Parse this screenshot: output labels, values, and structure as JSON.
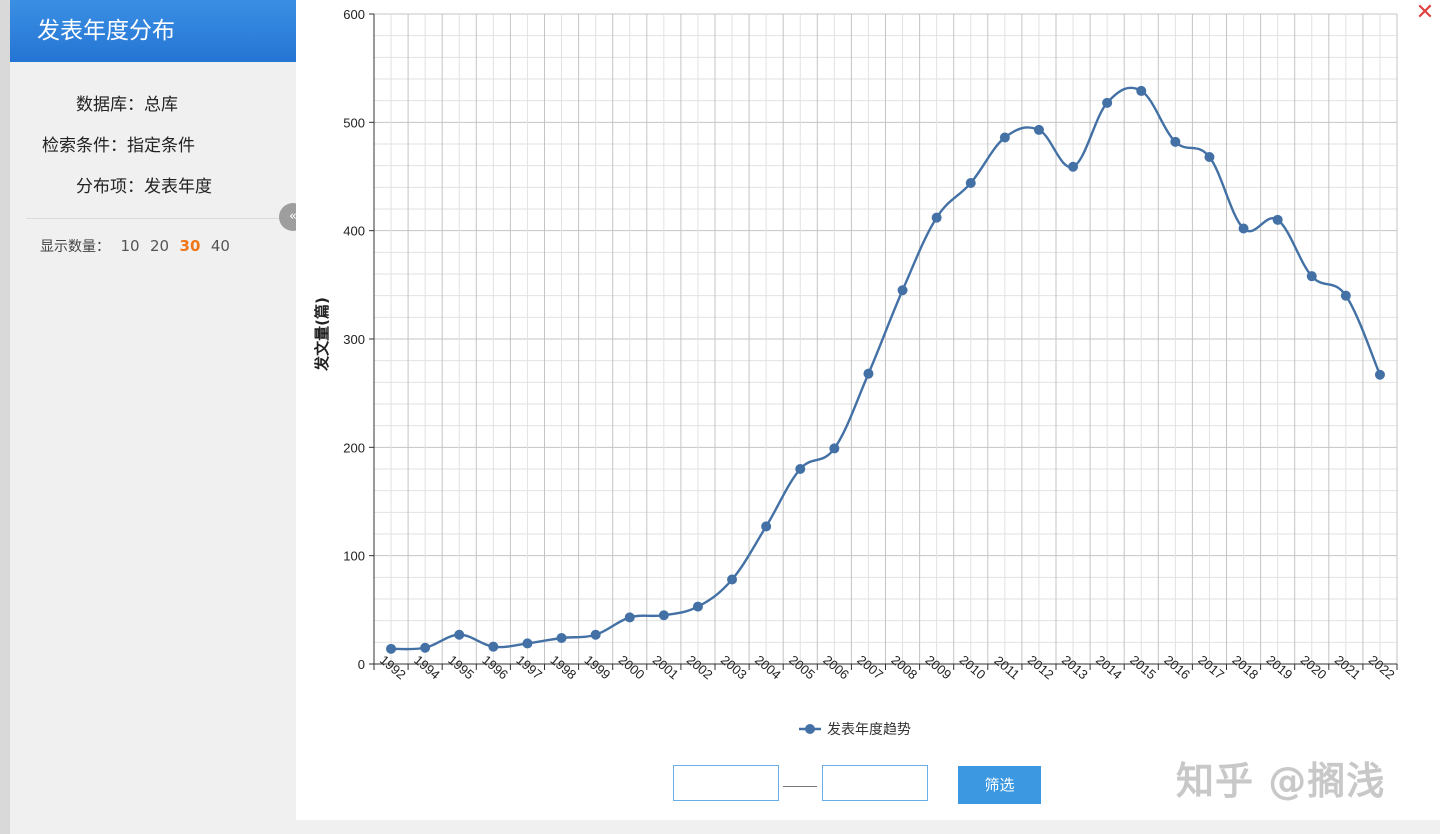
{
  "panel": {
    "title": "发表年度分布",
    "info": [
      {
        "key": "数据库：",
        "value": "总库"
      },
      {
        "key": "检索条件：",
        "value": "指定条件"
      },
      {
        "key": "分布项：",
        "value": "发表年度"
      }
    ],
    "display_count_label": "显示数量：",
    "display_count_options": [
      "10",
      "20",
      "30",
      "40"
    ],
    "display_count_selected": "30",
    "collapse_icon": "double-chevron-left-icon"
  },
  "close_icon": "close-icon",
  "filter": {
    "start_value": "",
    "end_value": "",
    "button_label": "筛选"
  },
  "watermark": "知乎 @搁浅",
  "colors": {
    "series": "#4471a5",
    "header": "#2f84dc",
    "active_option": "#f0761a",
    "filter_button": "#3c98e0"
  },
  "chart_data": {
    "type": "line",
    "ylabel": "发文量(篇)",
    "ylim": [
      0,
      600
    ],
    "yticks": [
      "0",
      "100",
      "200",
      "300",
      "400",
      "500",
      "600"
    ],
    "grid": true,
    "legend_position": "bottom",
    "categories": [
      "1992",
      "1994",
      "1995",
      "1996",
      "1997",
      "1998",
      "1999",
      "2000",
      "2001",
      "2002",
      "2003",
      "2004",
      "2005",
      "2006",
      "2007",
      "2008",
      "2009",
      "2010",
      "2011",
      "2012",
      "2013",
      "2014",
      "2015",
      "2016",
      "2017",
      "2018",
      "2019",
      "2020",
      "2021",
      "2022"
    ],
    "series": [
      {
        "name": "发表年度趋势",
        "values": [
          14,
          15,
          27,
          16,
          19,
          24,
          27,
          43,
          45,
          53,
          78,
          127,
          180,
          199,
          268,
          345,
          412,
          444,
          486,
          493,
          459,
          518,
          529,
          482,
          468,
          402,
          410,
          358,
          340,
          267
        ]
      }
    ]
  }
}
